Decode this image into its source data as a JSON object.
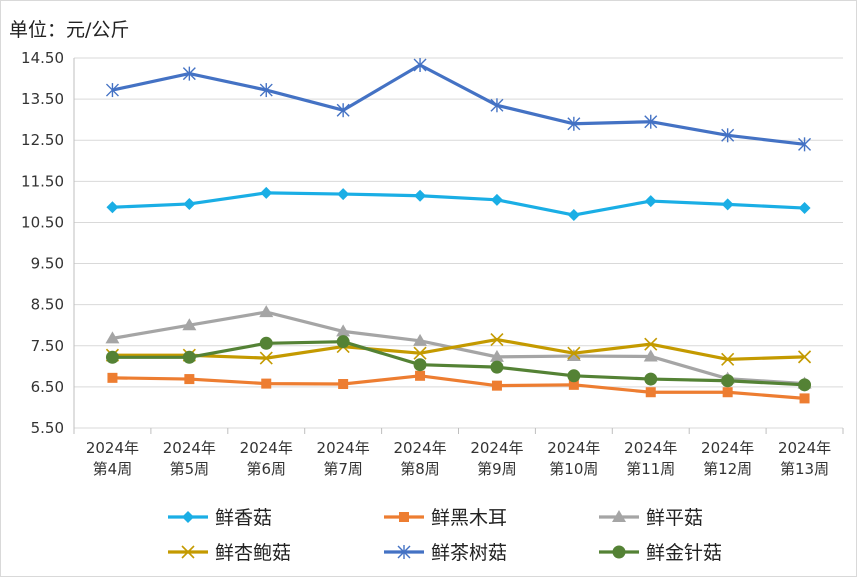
{
  "unit_label": "单位：元/公斤",
  "chart_data": {
    "type": "line",
    "title": "",
    "xlabel": "",
    "ylabel": "",
    "unit": "单位：元/公斤",
    "ylim": [
      5.5,
      14.5
    ],
    "yticks": [
      "14.50",
      "13.50",
      "12.50",
      "11.50",
      "10.50",
      "9.50",
      "8.50",
      "7.50",
      "6.50",
      "5.50"
    ],
    "ytick_values": [
      14.5,
      13.5,
      12.5,
      11.5,
      10.5,
      9.5,
      8.5,
      7.5,
      6.5,
      5.5
    ],
    "categories": [
      [
        "2024年",
        "第4周"
      ],
      [
        "2024年",
        "第5周"
      ],
      [
        "2024年",
        "第6周"
      ],
      [
        "2024年",
        "第7周"
      ],
      [
        "2024年",
        "第8周"
      ],
      [
        "2024年",
        "第9周"
      ],
      [
        "2024年",
        "第10周"
      ],
      [
        "2024年",
        "第11周"
      ],
      [
        "2024年",
        "第12周"
      ],
      [
        "2024年",
        "第13周"
      ]
    ],
    "grid": "horizontal",
    "legend_position": "bottom",
    "series": [
      {
        "name": "鲜香菇",
        "color": "#1aaee5",
        "marker": "diamond",
        "values": [
          10.87,
          10.95,
          11.22,
          11.19,
          11.15,
          11.05,
          10.68,
          11.02,
          10.94,
          10.85
        ]
      },
      {
        "name": "鲜黑木耳",
        "color": "#ed7d31",
        "marker": "square",
        "values": [
          6.72,
          6.69,
          6.58,
          6.57,
          6.77,
          6.53,
          6.55,
          6.37,
          6.37,
          6.22
        ]
      },
      {
        "name": "鲜平菇",
        "color": "#a5a5a5",
        "marker": "triangle",
        "values": [
          7.68,
          8.0,
          8.32,
          7.85,
          7.62,
          7.23,
          7.25,
          7.24,
          6.7,
          6.58
        ]
      },
      {
        "name": "鲜杏鲍菇",
        "color": "#c49a00",
        "marker": "x",
        "values": [
          7.27,
          7.27,
          7.2,
          7.48,
          7.32,
          7.65,
          7.32,
          7.54,
          7.17,
          7.23
        ]
      },
      {
        "name": "鲜茶树菇",
        "color": "#4472c4",
        "marker": "star",
        "values": [
          13.72,
          14.12,
          13.72,
          13.23,
          14.33,
          13.35,
          12.9,
          12.95,
          12.62,
          12.4
        ]
      },
      {
        "name": "鲜金针菇",
        "color": "#548235",
        "marker": "circle",
        "values": [
          7.22,
          7.22,
          7.56,
          7.6,
          7.04,
          6.98,
          6.77,
          6.69,
          6.65,
          6.55
        ]
      }
    ]
  }
}
